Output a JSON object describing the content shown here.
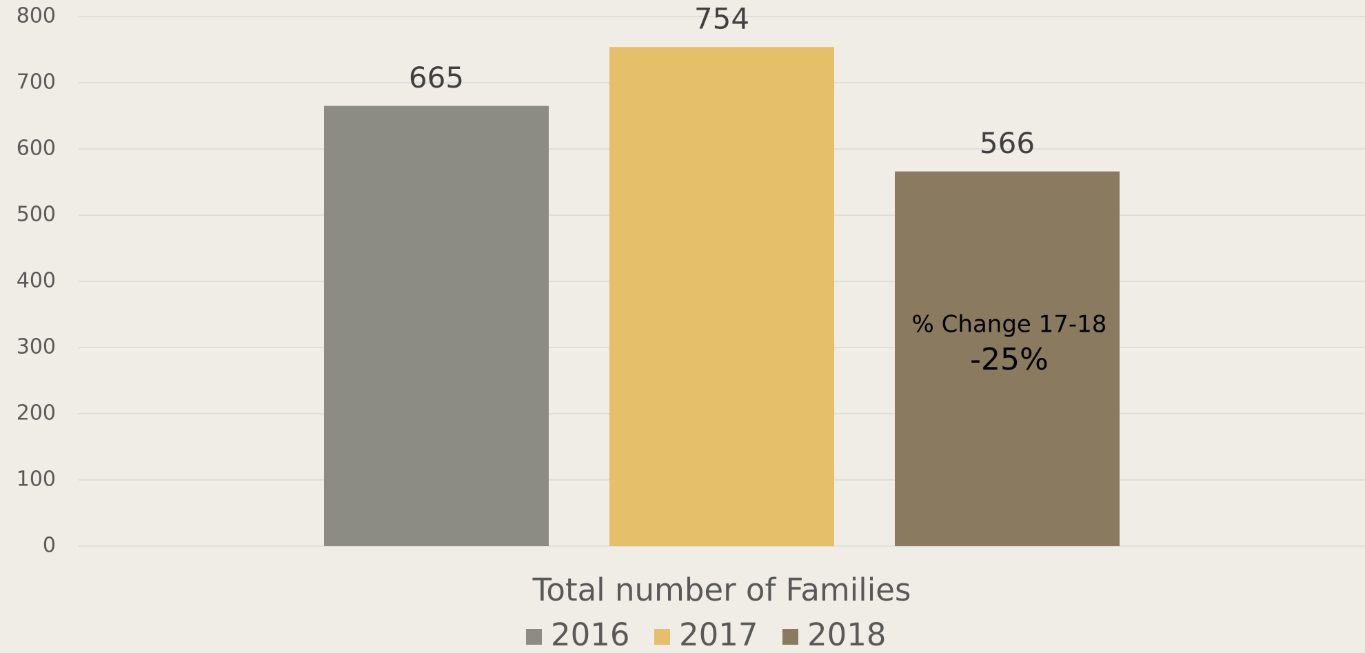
{
  "chart_data": {
    "type": "bar",
    "categories": [
      "Total number of Families"
    ],
    "series": [
      {
        "name": "2016",
        "color": "#8c8c85",
        "values": [
          665
        ]
      },
      {
        "name": "2017",
        "color": "#e5bf6a",
        "values": [
          754
        ]
      },
      {
        "name": "2018",
        "color": "#8a7b60",
        "values": [
          566
        ]
      }
    ],
    "ylim": [
      0,
      800
    ],
    "yticks": [
      0,
      100,
      200,
      300,
      400,
      500,
      600,
      700,
      800
    ],
    "grid": true,
    "legend": "bottom",
    "annotation": {
      "title": "% Change 17-18",
      "value": "-25%"
    }
  }
}
